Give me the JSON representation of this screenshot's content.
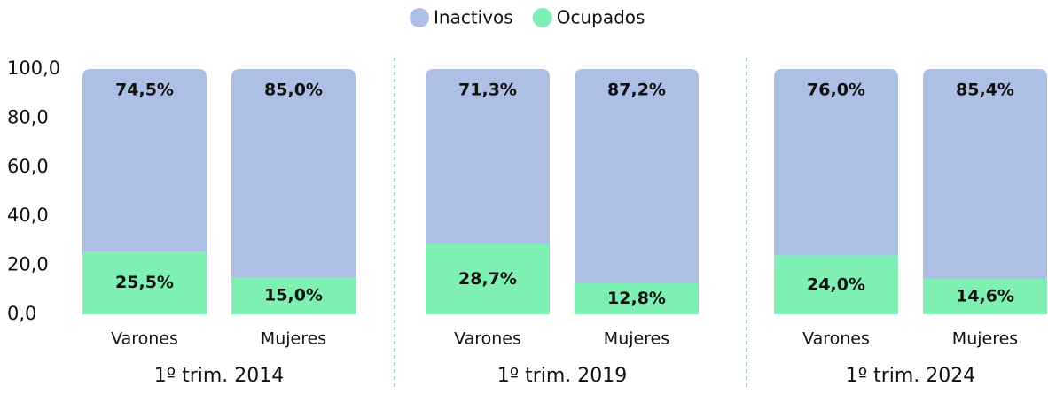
{
  "chart_data": {
    "type": "stacked_bar",
    "groups": [
      {
        "label": "1º trim. 2014",
        "categories": [
          "Varones",
          "Mujeres"
        ]
      },
      {
        "label": "1º trim. 2019",
        "categories": [
          "Varones",
          "Mujeres"
        ]
      },
      {
        "label": "1º trim. 2024",
        "categories": [
          "Varones",
          "Mujeres"
        ]
      }
    ],
    "series": [
      {
        "name": "Ocupados",
        "color": "#7ef0b4",
        "values": [
          25.5,
          15.0,
          28.7,
          12.8,
          24.0,
          14.6
        ],
        "value_labels": [
          "25,5%",
          "15,0%",
          "28,7%",
          "12,8%",
          "24,0%",
          "14,6%"
        ]
      },
      {
        "name": "Inactivos",
        "color": "#aebfe6",
        "values": [
          74.5,
          85.0,
          71.3,
          87.2,
          76.0,
          85.4
        ],
        "value_labels": [
          "74,5%",
          "85,0%",
          "71,3%",
          "87,2%",
          "76,0%",
          "85,4%"
        ]
      }
    ],
    "legend_order": [
      "Inactivos",
      "Ocupados"
    ],
    "ylim": [
      0,
      100
    ],
    "yticks": [
      {
        "value": 0,
        "label": "0,0"
      },
      {
        "value": 20,
        "label": "20,0"
      },
      {
        "value": 40,
        "label": "40,0"
      },
      {
        "value": 60,
        "label": "60,0"
      },
      {
        "value": 80,
        "label": "80,0"
      },
      {
        "value": 100,
        "label": "100,0"
      }
    ],
    "legend": "top"
  }
}
